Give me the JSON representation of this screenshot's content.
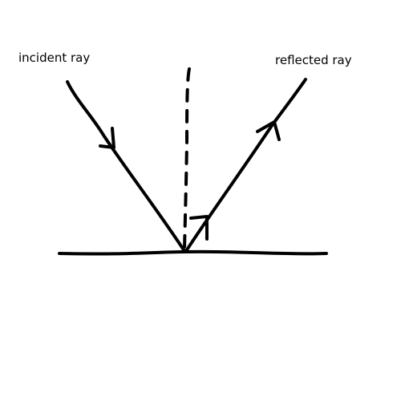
{
  "labels": {
    "incident": "incident ray",
    "reflected": "reflected ray"
  },
  "colors": {
    "ink": "#000000",
    "background": "#ffffff"
  }
}
